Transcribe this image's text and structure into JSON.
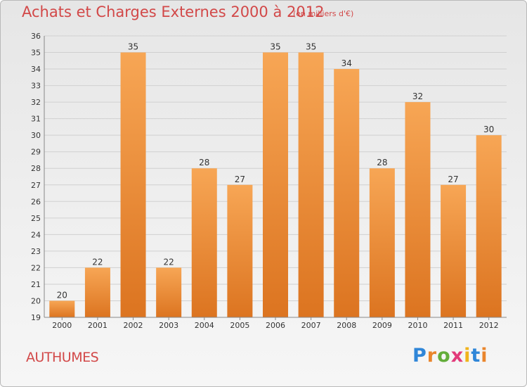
{
  "header": {
    "title": "Achats et Charges Externes 2000 à 2012",
    "unit": "(en milliers d'€)"
  },
  "footer": {
    "town": "AUTHUMES",
    "brand": "Proxiti"
  },
  "colors": {
    "title": "#d24848",
    "bar_light": "#f7a655",
    "bar_dark": "#dc7420",
    "grid": "#d0d0d0"
  },
  "chart_data": {
    "type": "bar",
    "categories": [
      "2000",
      "2001",
      "2002",
      "2003",
      "2004",
      "2005",
      "2006",
      "2007",
      "2008",
      "2009",
      "2010",
      "2011",
      "2012"
    ],
    "values": [
      20,
      22,
      35,
      22,
      28,
      27,
      35,
      35,
      34,
      28,
      32,
      27,
      30
    ],
    "ylim": [
      19,
      36
    ],
    "yticks": [
      19,
      20,
      21,
      22,
      23,
      24,
      25,
      26,
      27,
      28,
      29,
      30,
      31,
      32,
      33,
      34,
      35,
      36
    ],
    "grid": true
  }
}
